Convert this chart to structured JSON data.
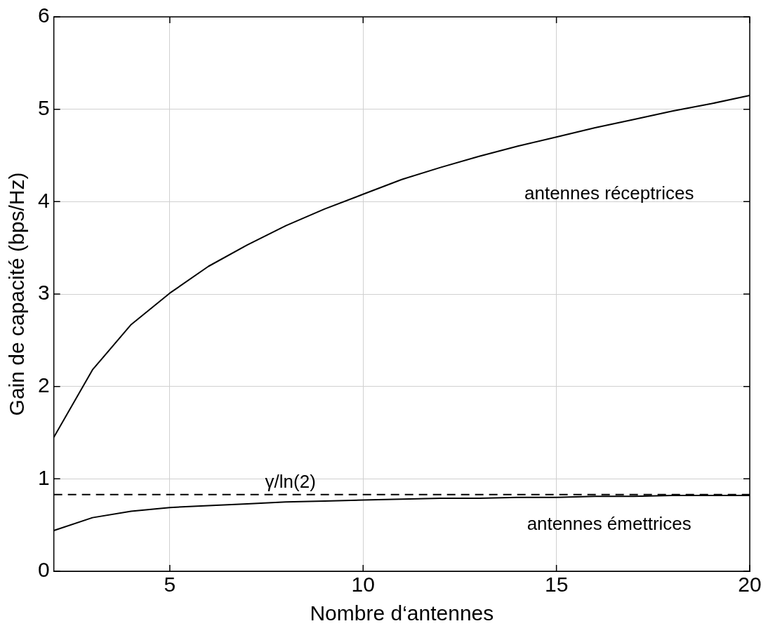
{
  "chart_data": {
    "type": "line",
    "xlabel": "Nombre d‘antennes",
    "ylabel": "Gain de capacité (bps/Hz)",
    "x": [
      2,
      3,
      4,
      5,
      6,
      7,
      8,
      9,
      10,
      11,
      12,
      13,
      14,
      15,
      16,
      17,
      18,
      19,
      20
    ],
    "series": [
      {
        "name": "antennes réceptrices",
        "color": "#000000",
        "values": [
          1.45,
          2.18,
          2.67,
          3.01,
          3.3,
          3.53,
          3.74,
          3.92,
          4.08,
          4.24,
          4.37,
          4.49,
          4.6,
          4.7,
          4.8,
          4.89,
          4.98,
          5.06,
          5.15
        ]
      },
      {
        "name": "antennes émettrices",
        "color": "#000000",
        "values": [
          0.44,
          0.58,
          0.65,
          0.69,
          0.71,
          0.73,
          0.75,
          0.76,
          0.77,
          0.78,
          0.79,
          0.79,
          0.8,
          0.8,
          0.81,
          0.81,
          0.82,
          0.82,
          0.82
        ]
      }
    ],
    "ref_lines": [
      {
        "axis": "y",
        "value": 0.83,
        "label": "γ/ln(2)",
        "line_style": "dashed",
        "color": "#000000"
      }
    ],
    "xlim": [
      2,
      20
    ],
    "xticks": [
      5,
      10,
      15,
      20
    ],
    "ylim": [
      0,
      6
    ],
    "yticks": [
      0,
      1,
      2,
      3,
      4,
      5,
      6
    ],
    "grid": true,
    "legend": false,
    "marker": "none",
    "line_style": "solid"
  }
}
